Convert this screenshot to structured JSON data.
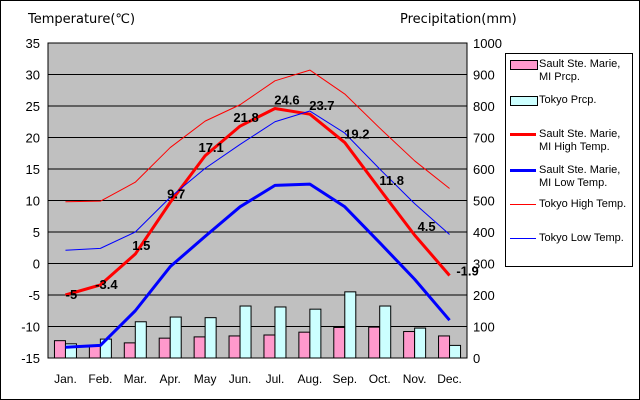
{
  "chart_data": {
    "type": "bar+line",
    "left_axis_label": "Temperature(℃)",
    "right_axis_label": "Precipitation(mm)",
    "categories": [
      "Jan.",
      "Feb.",
      "Mar.",
      "Apr.",
      "May",
      "Jun.",
      "Jul.",
      "Aug.",
      "Sep.",
      "Oct.",
      "Nov.",
      "Dec."
    ],
    "temp_axis": {
      "ylim": [
        -15,
        35
      ],
      "ticks": [
        "35",
        "30",
        "25",
        "20",
        "15",
        "10",
        "5",
        "0",
        "-5",
        "-10",
        "-15"
      ]
    },
    "precip_axis": {
      "ylim": [
        0,
        1000
      ],
      "ticks": [
        "1000",
        "900",
        "800",
        "700",
        "600",
        "500",
        "400",
        "300",
        "200",
        "100",
        "0"
      ]
    },
    "grid": true,
    "bar_series": [
      {
        "name": "Sault Ste. Marie, MI Prcp.",
        "color": "#ff99cc",
        "values": [
          55,
          38,
          48,
          63,
          67,
          70,
          73,
          82,
          97,
          98,
          84,
          70
        ]
      },
      {
        "name": "Tokyo Prcp.",
        "color": "#ccffff",
        "values": [
          45,
          60,
          115,
          130,
          128,
          165,
          162,
          155,
          210,
          165,
          95,
          40
        ]
      }
    ],
    "line_series": [
      {
        "name": "Sault Ste. Marie, MI High Temp.",
        "color": "#ff0000",
        "width": 3,
        "values": [
          -5,
          -3.4,
          1.5,
          9.7,
          17.1,
          21.8,
          24.6,
          23.7,
          19.2,
          11.8,
          4.5,
          -1.9
        ],
        "labels": [
          "-5",
          "-3.4",
          "1.5",
          "9.7",
          "17.1",
          "21.8",
          "24.6",
          "23.7",
          "19.2",
          "11.8",
          "4.5",
          "-1.9"
        ]
      },
      {
        "name": "Sault Ste. Marie, MI Low Temp.",
        "color": "#0000ff",
        "width": 3,
        "values": [
          -13.3,
          -13,
          -7.5,
          -0.5,
          4.3,
          9,
          12.4,
          12.6,
          9,
          3.3,
          -2.5,
          -9
        ]
      },
      {
        "name": "Tokyo High Temp.",
        "color": "#ff0000",
        "width": 1,
        "values": [
          9.8,
          9.9,
          12.9,
          18.4,
          22.6,
          25.2,
          29,
          30.7,
          26.9,
          21.5,
          16.3,
          11.9
        ]
      },
      {
        "name": "Tokyo Low Temp.",
        "color": "#0000ff",
        "width": 1,
        "values": [
          2.1,
          2.4,
          5,
          10.5,
          15.1,
          18.9,
          22.5,
          24.2,
          20.7,
          15,
          9.5,
          4.6
        ]
      }
    ],
    "legend": [
      {
        "label": "Sault Ste. Marie, MI Prcp.",
        "kind": "bar",
        "color": "#ff99cc"
      },
      {
        "label": "Tokyo Prcp.",
        "kind": "bar",
        "color": "#ccffff"
      },
      {
        "label": "Sault Ste. Marie, MI High Temp.",
        "kind": "line",
        "color": "#ff0000",
        "width": 3
      },
      {
        "label": "Sault Ste. Marie, MI Low Temp.",
        "kind": "line",
        "color": "#0000ff",
        "width": 3
      },
      {
        "label": "Tokyo High Temp.",
        "kind": "line",
        "color": "#ff0000",
        "width": 1
      },
      {
        "label": "Tokyo Low Temp.",
        "kind": "line",
        "color": "#0000ff",
        "width": 1
      }
    ],
    "legend_position": "right"
  }
}
